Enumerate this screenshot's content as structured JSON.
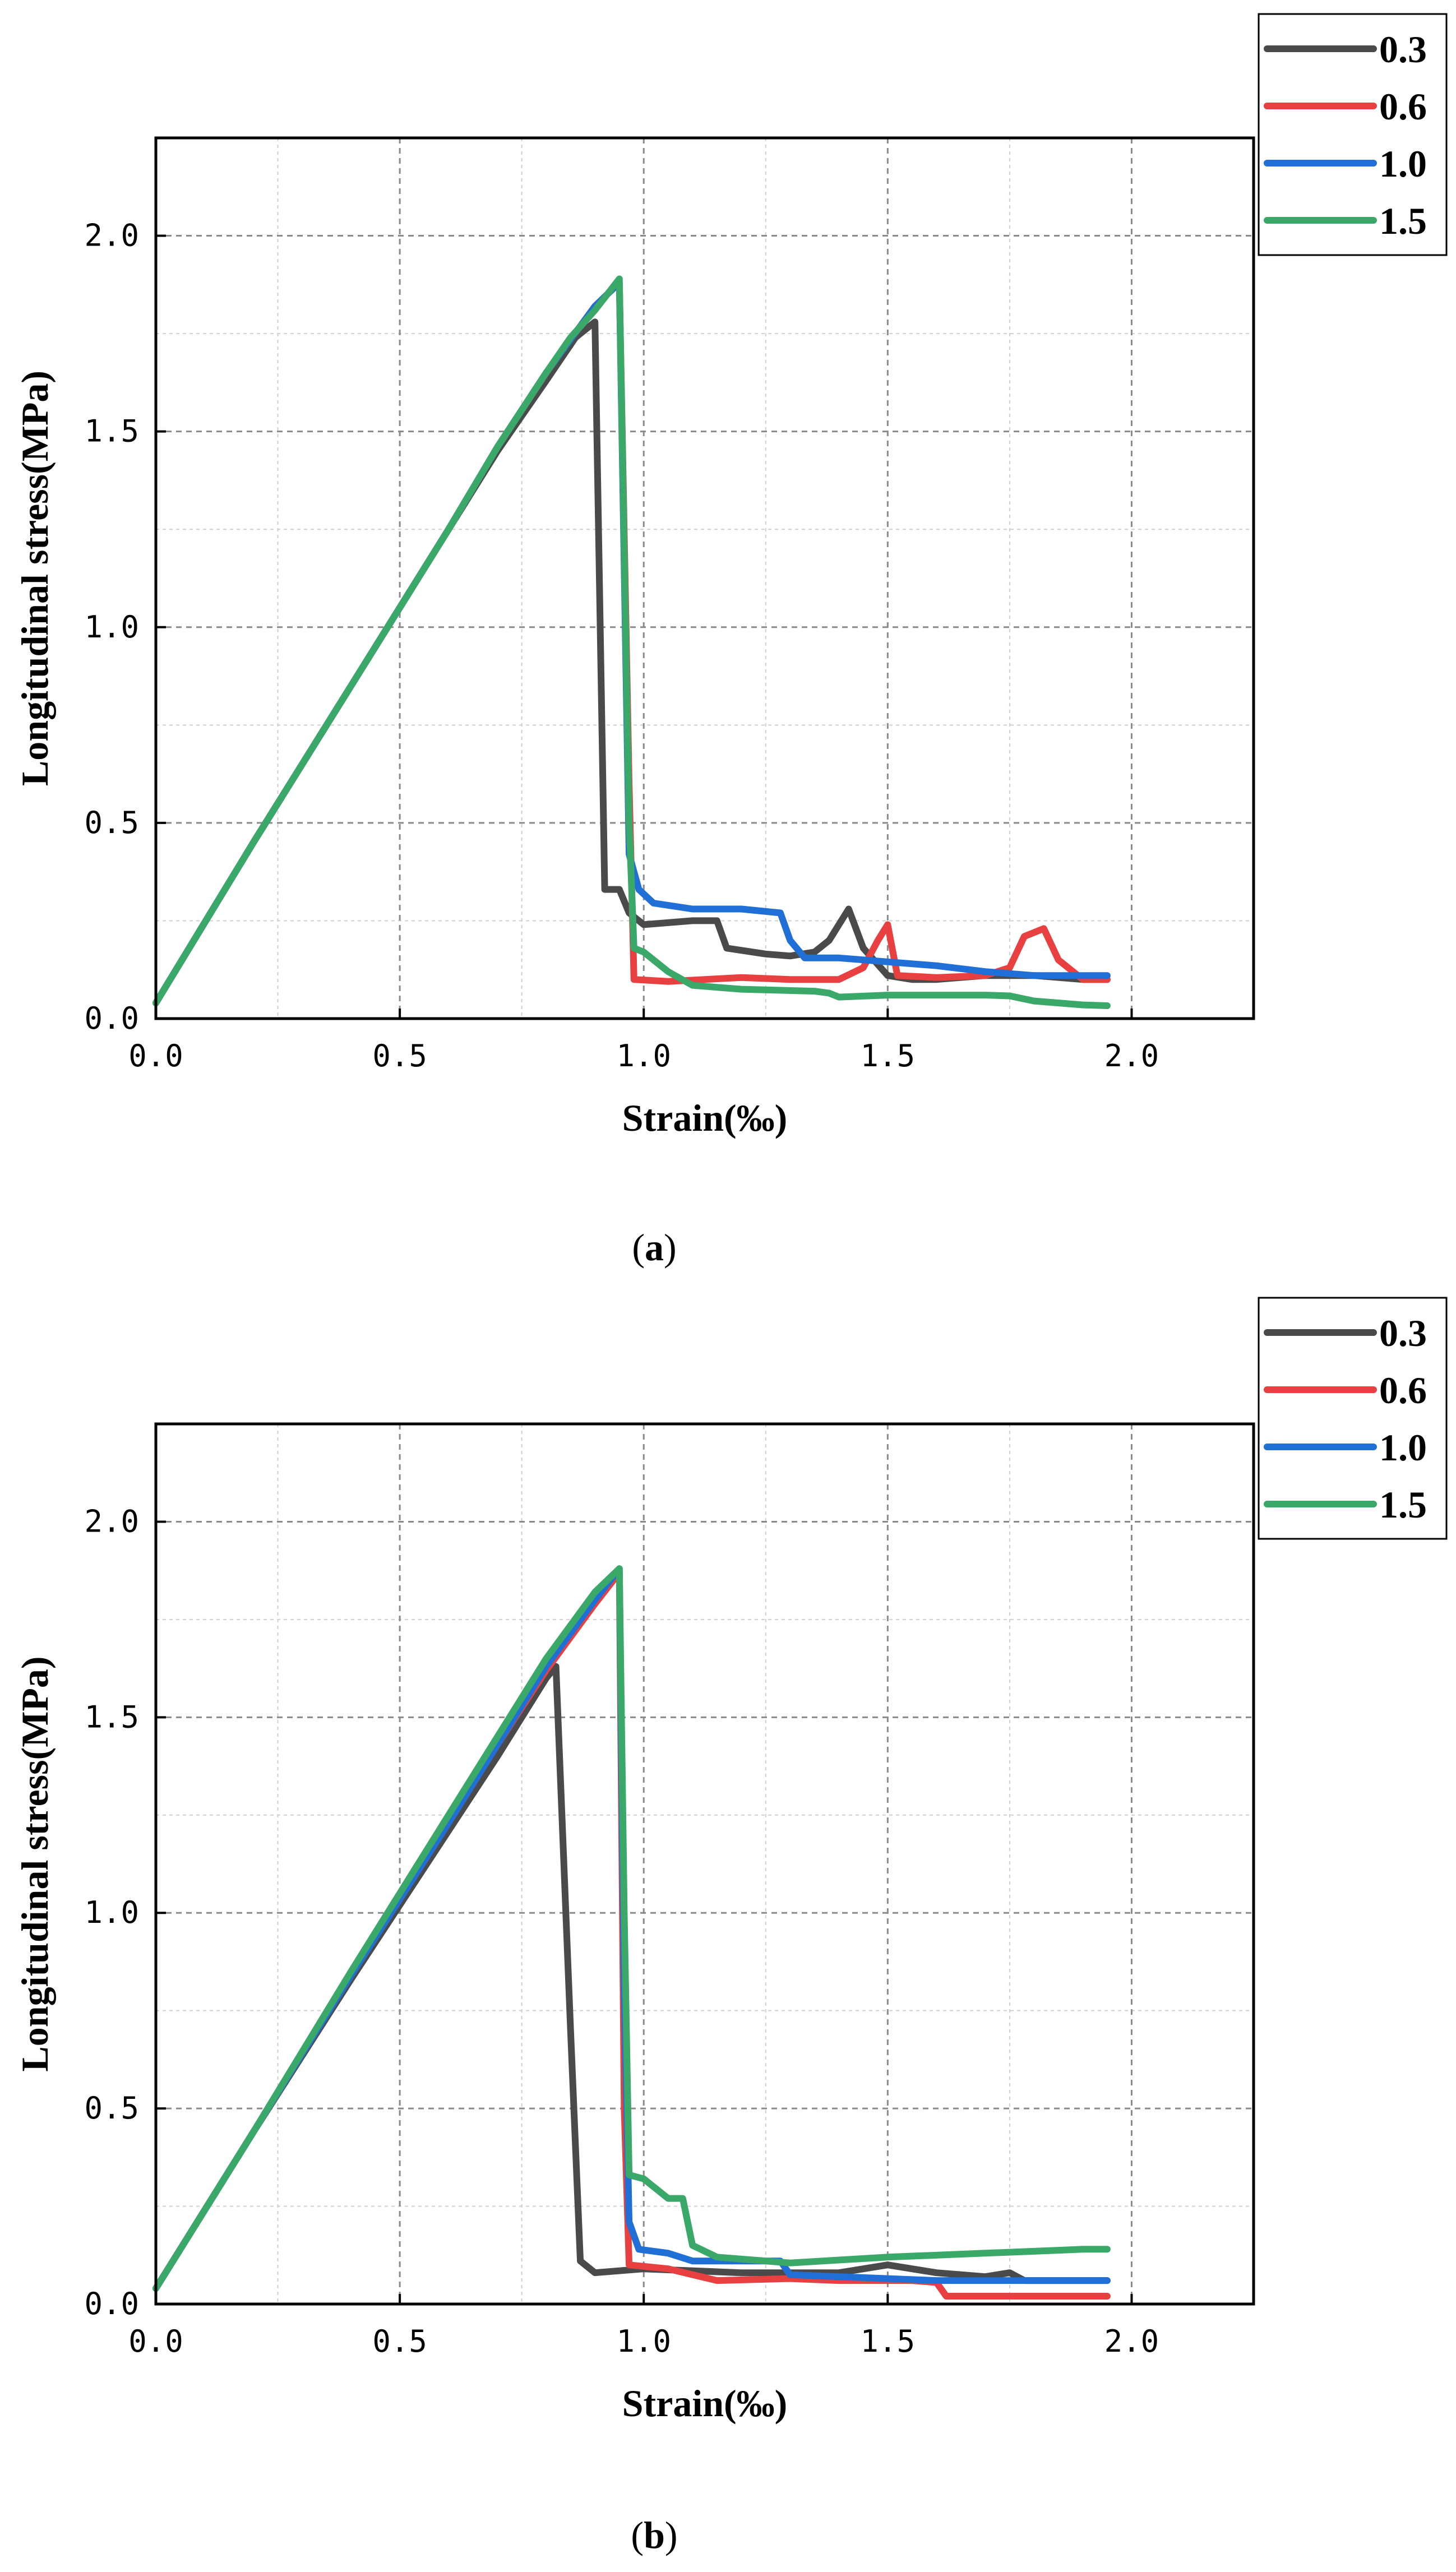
{
  "chart_data": [
    {
      "type": "line",
      "caption": "(a)",
      "caption_letter": "a",
      "xlabel": "Strain(‰)",
      "ylabel": "Longitudinal stress(MPa)",
      "xlim": [
        0,
        2.25
      ],
      "ylim": [
        0,
        2.25
      ],
      "x_ticks": [
        0.0,
        0.5,
        1.0,
        1.5,
        2.0
      ],
      "x_tick_labels": [
        "0.0",
        "0.5",
        "1.0",
        "1.5",
        "2.0"
      ],
      "y_ticks": [
        0.0,
        0.5,
        1.0,
        1.5,
        2.0
      ],
      "y_tick_labels": [
        "0.0",
        "0.5",
        "1.0",
        "1.5",
        "2.0"
      ],
      "grid": true,
      "legend_position": "outside-top-right",
      "series": [
        {
          "name": "0.3",
          "color": "#4a4a4a",
          "x": [
            0,
            0.2,
            0.4,
            0.6,
            0.7,
            0.8,
            0.86,
            0.9,
            0.92,
            0.95,
            0.97,
            1.0,
            1.05,
            1.1,
            1.15,
            1.17,
            1.25,
            1.3,
            1.35,
            1.38,
            1.42,
            1.45,
            1.5,
            1.55,
            1.6,
            1.7,
            1.8,
            1.9,
            1.95
          ],
          "y": [
            0.04,
            0.45,
            0.85,
            1.25,
            1.45,
            1.63,
            1.74,
            1.78,
            0.33,
            0.33,
            0.27,
            0.24,
            0.245,
            0.25,
            0.25,
            0.18,
            0.165,
            0.16,
            0.17,
            0.2,
            0.28,
            0.18,
            0.11,
            0.1,
            0.1,
            0.11,
            0.11,
            0.1,
            0.1
          ]
        },
        {
          "name": "0.6",
          "color": "#e84040",
          "x": [
            0,
            0.2,
            0.4,
            0.6,
            0.7,
            0.8,
            0.9,
            0.95,
            0.97,
            0.98,
            1.05,
            1.2,
            1.3,
            1.4,
            1.45,
            1.48,
            1.5,
            1.52,
            1.6,
            1.7,
            1.75,
            1.78,
            1.8,
            1.82,
            1.85,
            1.9,
            1.95
          ],
          "y": [
            0.04,
            0.45,
            0.85,
            1.25,
            1.46,
            1.65,
            1.82,
            1.88,
            0.6,
            0.1,
            0.095,
            0.105,
            0.1,
            0.1,
            0.13,
            0.2,
            0.24,
            0.11,
            0.105,
            0.11,
            0.13,
            0.21,
            0.22,
            0.23,
            0.15,
            0.1,
            0.1
          ]
        },
        {
          "name": "1.0",
          "color": "#1f6fd6",
          "x": [
            0,
            0.2,
            0.4,
            0.6,
            0.7,
            0.8,
            0.9,
            0.95,
            0.97,
            0.99,
            1.02,
            1.1,
            1.2,
            1.28,
            1.3,
            1.33,
            1.4,
            1.5,
            1.6,
            1.7,
            1.8,
            1.9,
            1.95
          ],
          "y": [
            0.04,
            0.45,
            0.85,
            1.25,
            1.46,
            1.65,
            1.82,
            1.88,
            0.42,
            0.33,
            0.295,
            0.28,
            0.28,
            0.27,
            0.2,
            0.155,
            0.155,
            0.145,
            0.135,
            0.12,
            0.11,
            0.11,
            0.11
          ]
        },
        {
          "name": "1.5",
          "color": "#3aa868",
          "x": [
            0,
            0.2,
            0.4,
            0.6,
            0.7,
            0.8,
            0.85,
            0.9,
            0.95,
            0.97,
            0.98,
            1.0,
            1.05,
            1.1,
            1.2,
            1.35,
            1.38,
            1.4,
            1.5,
            1.6,
            1.7,
            1.75,
            1.8,
            1.9,
            1.95
          ],
          "y": [
            0.04,
            0.45,
            0.85,
            1.25,
            1.46,
            1.65,
            1.74,
            1.81,
            1.89,
            0.5,
            0.18,
            0.17,
            0.12,
            0.085,
            0.075,
            0.07,
            0.065,
            0.055,
            0.06,
            0.06,
            0.06,
            0.058,
            0.045,
            0.035,
            0.033
          ]
        }
      ]
    },
    {
      "type": "line",
      "caption": "(b)",
      "caption_letter": "b",
      "xlabel": "Strain(‰)",
      "ylabel": "Longitudinal stress(MPa)",
      "xlim": [
        0,
        2.25
      ],
      "ylim": [
        0,
        2.25
      ],
      "x_ticks": [
        0.0,
        0.5,
        1.0,
        1.5,
        2.0
      ],
      "x_tick_labels": [
        "0.0",
        "0.5",
        "1.0",
        "1.5",
        "2.0"
      ],
      "y_ticks": [
        0.0,
        0.5,
        1.0,
        1.5,
        2.0
      ],
      "y_tick_labels": [
        "0.0",
        "0.5",
        "1.0",
        "1.5",
        "2.0"
      ],
      "grid": true,
      "legend_position": "outside-top-right",
      "series": [
        {
          "name": "0.3",
          "color": "#4a4a4a",
          "x": [
            0,
            0.2,
            0.4,
            0.6,
            0.7,
            0.75,
            0.8,
            0.82,
            0.85,
            0.87,
            0.9,
            1.0,
            1.2,
            1.4,
            1.5,
            1.6,
            1.7,
            1.75,
            1.78,
            1.9,
            1.95
          ],
          "y": [
            0.04,
            0.44,
            0.83,
            1.21,
            1.4,
            1.5,
            1.6,
            1.63,
            0.7,
            0.11,
            0.08,
            0.09,
            0.08,
            0.08,
            0.1,
            0.08,
            0.07,
            0.08,
            0.06,
            0.06,
            0.06
          ]
        },
        {
          "name": "0.6",
          "color": "#e84040",
          "x": [
            0,
            0.2,
            0.4,
            0.6,
            0.7,
            0.8,
            0.9,
            0.95,
            0.96,
            0.97,
            1.05,
            1.15,
            1.3,
            1.4,
            1.55,
            1.6,
            1.62,
            1.7,
            1.8,
            1.95
          ],
          "y": [
            0.04,
            0.44,
            0.84,
            1.23,
            1.43,
            1.62,
            1.79,
            1.87,
            0.5,
            0.1,
            0.09,
            0.06,
            0.065,
            0.06,
            0.06,
            0.055,
            0.02,
            0.02,
            0.02,
            0.02
          ]
        },
        {
          "name": "1.0",
          "color": "#1f6fd6",
          "x": [
            0,
            0.2,
            0.4,
            0.6,
            0.7,
            0.8,
            0.9,
            0.95,
            0.96,
            0.97,
            0.99,
            1.05,
            1.1,
            1.2,
            1.28,
            1.3,
            1.4,
            1.6,
            1.8,
            1.95
          ],
          "y": [
            0.04,
            0.44,
            0.84,
            1.23,
            1.43,
            1.63,
            1.8,
            1.88,
            0.8,
            0.21,
            0.14,
            0.13,
            0.11,
            0.11,
            0.11,
            0.075,
            0.07,
            0.06,
            0.06,
            0.06
          ]
        },
        {
          "name": "1.5",
          "color": "#3aa868",
          "x": [
            0,
            0.2,
            0.4,
            0.6,
            0.7,
            0.8,
            0.9,
            0.95,
            0.96,
            0.97,
            1.0,
            1.05,
            1.08,
            1.1,
            1.15,
            1.3,
            1.5,
            1.7,
            1.9,
            1.95
          ],
          "y": [
            0.04,
            0.44,
            0.85,
            1.25,
            1.45,
            1.65,
            1.82,
            1.88,
            1.0,
            0.33,
            0.32,
            0.27,
            0.27,
            0.15,
            0.12,
            0.105,
            0.12,
            0.13,
            0.14,
            0.14
          ]
        }
      ]
    }
  ]
}
